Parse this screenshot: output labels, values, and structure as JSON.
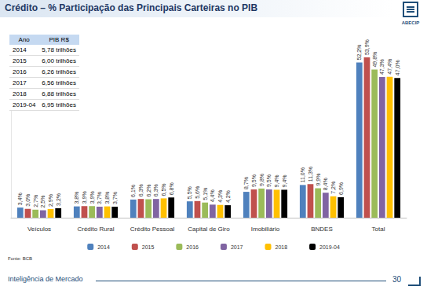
{
  "header": {
    "title": "Crédito – % Participação das Principais Carteiras no PIB",
    "logo": "ABECIP"
  },
  "table": {
    "columns": [
      "Ano",
      "PIB R$"
    ],
    "rows": [
      [
        "2014",
        "5,78 trilhões"
      ],
      [
        "2015",
        "6,00 trilhões"
      ],
      [
        "2016",
        "6,26 trilhões"
      ],
      [
        "2017",
        "6,56 trilhões"
      ],
      [
        "2018",
        "6,88 trilhões"
      ],
      [
        "2019-04",
        "6,95 trilhões"
      ]
    ]
  },
  "chart_data": {
    "type": "bar",
    "categories": [
      "Veículos",
      "Crédito Rural",
      "Crédito Pessoal",
      "Capital de Giro",
      "Imobiliário",
      "BNDES",
      "Total"
    ],
    "series": [
      {
        "name": "2014",
        "color": "#4f81bd",
        "values": [
          3.4,
          3.8,
          6.1,
          5.5,
          8.7,
          11.0,
          52.2
        ],
        "value_labels": [
          "3,4%",
          "3,8%",
          "6,1%",
          "5,5%",
          "8,7%",
          "11,0%",
          "52,2%"
        ]
      },
      {
        "name": "2015",
        "color": "#c0504d",
        "values": [
          3.0,
          3.9,
          6.3,
          5.6,
          9.5,
          11.3,
          53.9
        ],
        "value_labels": [
          "3,0%",
          "3,9%",
          "6,3%",
          "5,6%",
          "9,5%",
          "11,3%",
          "53,9%"
        ]
      },
      {
        "name": "2016",
        "color": "#9bbb59",
        "values": [
          2.7,
          3.9,
          6.2,
          5.1,
          9.8,
          9.9,
          49.8
        ],
        "value_labels": [
          "2,7%",
          "3,9%",
          "6,2%",
          "5,1%",
          "9,8%",
          "9,9%",
          "49,8%"
        ]
      },
      {
        "name": "2017",
        "color": "#8064a2",
        "values": [
          2.5,
          3.7,
          6.3,
          4.4,
          9.5,
          8.4,
          47.3
        ],
        "value_labels": [
          "2,5%",
          "3,7%",
          "6,3%",
          "4,4%",
          "9,5%",
          "8,4%",
          "47,3%"
        ]
      },
      {
        "name": "2018",
        "color": "#ffc000",
        "values": [
          2.9,
          3.8,
          6.5,
          4.3,
          9.4,
          7.2,
          47.4
        ],
        "value_labels": [
          "2,9%",
          "3,8%",
          "6,5%",
          "4,3%",
          "9,4%",
          "7,2%",
          "47,4%"
        ]
      },
      {
        "name": "2019-04",
        "color": "#000000",
        "values": [
          3.2,
          3.7,
          6.8,
          4.2,
          9.4,
          6.9,
          47.0
        ],
        "value_labels": [
          "3,2%",
          "3,7%",
          "6,8%",
          "4,2%",
          "9,4%",
          "6,9%",
          "47,0%"
        ]
      }
    ],
    "ylim": [
      0,
      60
    ],
    "grid": false,
    "legend": "bottom",
    "data_labels": true,
    "tick_labels": "x"
  },
  "footer": {
    "source": "Fonte: BCB",
    "text": "Inteligência de Mercado",
    "page": 30
  }
}
